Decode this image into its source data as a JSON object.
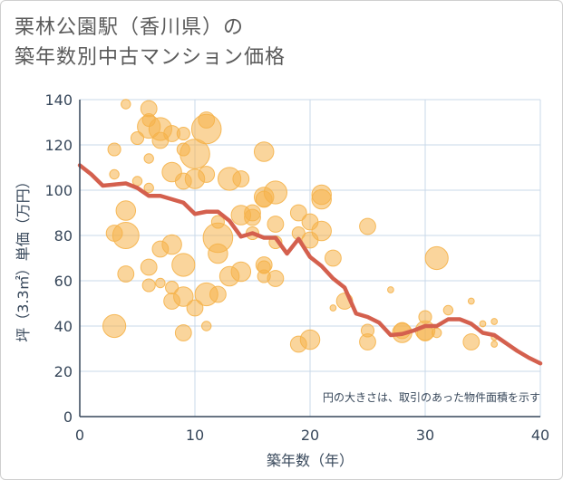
{
  "title_line1": "栗林公園駅（香川県）の",
  "title_line2": "築年数別中古マンション価格",
  "chart_data": {
    "type": "scatter",
    "xlabel": "築年数（年）",
    "ylabel": "坪（3.3㎡）単価（万円）",
    "xlim": [
      0,
      40
    ],
    "ylim": [
      0,
      140
    ],
    "xticks": [
      0,
      10,
      20,
      30,
      40
    ],
    "yticks": [
      0,
      20,
      40,
      60,
      80,
      100,
      120,
      140
    ],
    "grid": true,
    "note": "円の大きさは、取引のあった物件面積を示す",
    "colors": {
      "bubble": "#f5b24a",
      "line": "#d4604e",
      "grid": "#c8d8e8",
      "axis": "#37475a"
    },
    "bubbles": [
      {
        "x": 3,
        "y": 118,
        "s": 3
      },
      {
        "x": 3,
        "y": 107,
        "s": 2
      },
      {
        "x": 3,
        "y": 81,
        "s": 4
      },
      {
        "x": 3,
        "y": 40,
        "s": 6
      },
      {
        "x": 4,
        "y": 138,
        "s": 2
      },
      {
        "x": 4,
        "y": 91,
        "s": 5
      },
      {
        "x": 4,
        "y": 80,
        "s": 7
      },
      {
        "x": 4,
        "y": 63,
        "s": 4
      },
      {
        "x": 5,
        "y": 123,
        "s": 3
      },
      {
        "x": 5,
        "y": 104,
        "s": 2
      },
      {
        "x": 6,
        "y": 136,
        "s": 4
      },
      {
        "x": 6,
        "y": 131,
        "s": 3
      },
      {
        "x": 6,
        "y": 128,
        "s": 6
      },
      {
        "x": 6,
        "y": 114,
        "s": 2
      },
      {
        "x": 6,
        "y": 101,
        "s": 2
      },
      {
        "x": 6,
        "y": 66,
        "s": 4
      },
      {
        "x": 6,
        "y": 58,
        "s": 3
      },
      {
        "x": 7,
        "y": 127,
        "s": 6
      },
      {
        "x": 7,
        "y": 122,
        "s": 4
      },
      {
        "x": 7,
        "y": 74,
        "s": 4
      },
      {
        "x": 7,
        "y": 59,
        "s": 2
      },
      {
        "x": 8,
        "y": 125,
        "s": 4
      },
      {
        "x": 8,
        "y": 108,
        "s": 5
      },
      {
        "x": 8,
        "y": 76,
        "s": 5
      },
      {
        "x": 8,
        "y": 57,
        "s": 3
      },
      {
        "x": 8,
        "y": 51,
        "s": 4
      },
      {
        "x": 9,
        "y": 125,
        "s": 3
      },
      {
        "x": 9,
        "y": 118,
        "s": 3
      },
      {
        "x": 9,
        "y": 104,
        "s": 4
      },
      {
        "x": 9,
        "y": 67,
        "s": 6
      },
      {
        "x": 9,
        "y": 53,
        "s": 5
      },
      {
        "x": 9,
        "y": 37,
        "s": 4
      },
      {
        "x": 10,
        "y": 116,
        "s": 8
      },
      {
        "x": 10,
        "y": 105,
        "s": 5
      },
      {
        "x": 10,
        "y": 48,
        "s": 4
      },
      {
        "x": 11,
        "y": 131,
        "s": 4
      },
      {
        "x": 11,
        "y": 127,
        "s": 8
      },
      {
        "x": 11,
        "y": 107,
        "s": 4
      },
      {
        "x": 11,
        "y": 54,
        "s": 6
      },
      {
        "x": 11,
        "y": 40,
        "s": 2
      },
      {
        "x": 12,
        "y": 86,
        "s": 3
      },
      {
        "x": 12,
        "y": 79,
        "s": 8
      },
      {
        "x": 12,
        "y": 72,
        "s": 5
      },
      {
        "x": 12,
        "y": 54,
        "s": 4
      },
      {
        "x": 13,
        "y": 105,
        "s": 6
      },
      {
        "x": 13,
        "y": 62,
        "s": 5
      },
      {
        "x": 14,
        "y": 105,
        "s": 4
      },
      {
        "x": 14,
        "y": 89,
        "s": 5
      },
      {
        "x": 14,
        "y": 64,
        "s": 5
      },
      {
        "x": 15,
        "y": 90,
        "s": 4
      },
      {
        "x": 15,
        "y": 88,
        "s": 4
      },
      {
        "x": 15,
        "y": 81,
        "s": 3
      },
      {
        "x": 16,
        "y": 117,
        "s": 5
      },
      {
        "x": 16,
        "y": 97,
        "s": 5
      },
      {
        "x": 16,
        "y": 96,
        "s": 4
      },
      {
        "x": 16,
        "y": 67,
        "s": 4
      },
      {
        "x": 16,
        "y": 66,
        "s": 3
      },
      {
        "x": 16,
        "y": 62,
        "s": 3
      },
      {
        "x": 17,
        "y": 99,
        "s": 6
      },
      {
        "x": 17,
        "y": 85,
        "s": 4
      },
      {
        "x": 17,
        "y": 77,
        "s": 3
      },
      {
        "x": 17,
        "y": 61,
        "s": 4
      },
      {
        "x": 19,
        "y": 90,
        "s": 4
      },
      {
        "x": 19,
        "y": 81,
        "s": 3
      },
      {
        "x": 19,
        "y": 32,
        "s": 4
      },
      {
        "x": 20,
        "y": 86,
        "s": 4
      },
      {
        "x": 20,
        "y": 78,
        "s": 4
      },
      {
        "x": 20,
        "y": 34,
        "s": 5
      },
      {
        "x": 21,
        "y": 98,
        "s": 5
      },
      {
        "x": 21,
        "y": 96,
        "s": 5
      },
      {
        "x": 21,
        "y": 82,
        "s": 5
      },
      {
        "x": 22,
        "y": 70,
        "s": 4
      },
      {
        "x": 22,
        "y": 48,
        "s": 1
      },
      {
        "x": 23,
        "y": 51,
        "s": 4
      },
      {
        "x": 25,
        "y": 84,
        "s": 4
      },
      {
        "x": 25,
        "y": 38,
        "s": 3
      },
      {
        "x": 25,
        "y": 33,
        "s": 4
      },
      {
        "x": 27,
        "y": 56,
        "s": 1
      },
      {
        "x": 28,
        "y": 38,
        "s": 4
      },
      {
        "x": 28,
        "y": 37,
        "s": 5
      },
      {
        "x": 30,
        "y": 44,
        "s": 3
      },
      {
        "x": 30,
        "y": 38,
        "s": 5
      },
      {
        "x": 30,
        "y": 37,
        "s": 4
      },
      {
        "x": 31,
        "y": 70,
        "s": 6
      },
      {
        "x": 31,
        "y": 37,
        "s": 2
      },
      {
        "x": 32,
        "y": 47,
        "s": 2
      },
      {
        "x": 34,
        "y": 51,
        "s": 1
      },
      {
        "x": 34,
        "y": 33,
        "s": 4
      },
      {
        "x": 35,
        "y": 41,
        "s": 1
      },
      {
        "x": 36,
        "y": 42,
        "s": 1
      },
      {
        "x": 36,
        "y": 35,
        "s": 1
      },
      {
        "x": 36,
        "y": 32,
        "s": 1
      }
    ],
    "trend": {
      "x": [
        0,
        1,
        2,
        3,
        4,
        5,
        6,
        7,
        8,
        9,
        10,
        11,
        12,
        13,
        14,
        15,
        16,
        17,
        18,
        19,
        20,
        21,
        22,
        23,
        24,
        25,
        26,
        27,
        28,
        29,
        30,
        31,
        32,
        33,
        34,
        35,
        36,
        37,
        38,
        39,
        40
      ],
      "y": [
        111,
        107,
        102,
        102.5,
        103,
        101,
        97.5,
        97.5,
        96,
        94.5,
        89.5,
        90.5,
        90.5,
        86.5,
        79.5,
        81,
        79,
        79,
        72,
        78.5,
        70.5,
        66.5,
        61,
        57,
        45.5,
        44,
        41.5,
        36,
        36.5,
        38,
        40,
        40,
        43,
        43,
        41,
        37,
        36,
        32.5,
        29,
        26,
        23.5
      ]
    }
  }
}
